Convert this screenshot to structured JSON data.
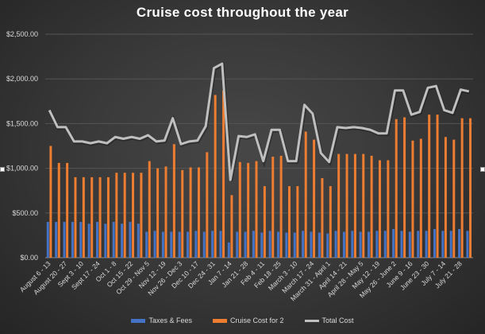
{
  "chart_data": {
    "type": "bar+line",
    "title": "Cruise cost throughout the year",
    "xlabel": "",
    "ylabel": "",
    "ylim": [
      0,
      2500
    ],
    "y_ticks": [
      "$0.00",
      "$500.00",
      "$1,000.00",
      "$1,500.00",
      "$2,000.00",
      "$2,500.00"
    ],
    "y_tick_values": [
      0,
      500,
      1000,
      1500,
      2000,
      2500
    ],
    "grid": true,
    "legend_position": "bottom",
    "weeks_count": 52,
    "tick_labels_every": 2,
    "tick_labels": [
      "August 6 - 13",
      "August 20 - 27",
      "Sept 3 - 10",
      "Sept 17 - 24",
      "Oct 1 - 8",
      "Oct 15 - 22",
      "Oct 29 - Nov 5",
      "Nov 12 - 19",
      "Nov 26 - Dec 3",
      "Dec 10 - 17",
      "Dec 24 - 31",
      "Jan 7 - 14",
      "Jan 21 - 28",
      "Feb 4 - 11",
      "Feb 18 - 25",
      "March 3 - 10",
      "March 17 - 24",
      "March 31 - April 1",
      "April 14 - 21",
      "April 28 - May 5",
      "May 12 - 19",
      "May 26 - June 2",
      "June 9 - 16",
      "June 23 - 30",
      "July 7 - 14",
      "July 21 - 28"
    ],
    "series": [
      {
        "name": "Taxes & Fees",
        "type": "bar",
        "color": "#4472c4",
        "values": [
          400,
          400,
          400,
          400,
          400,
          380,
          400,
          380,
          400,
          380,
          400,
          380,
          290,
          300,
          290,
          290,
          290,
          290,
          300,
          290,
          300,
          300,
          170,
          290,
          290,
          300,
          280,
          300,
          290,
          280,
          280,
          300,
          290,
          280,
          270,
          300,
          290,
          300,
          290,
          290,
          300,
          300,
          320,
          300,
          290,
          300,
          300,
          320,
          300,
          300,
          320,
          300
        ]
      },
      {
        "name": "Cruise Cost for 2",
        "type": "bar",
        "color": "#ed7d31",
        "values": [
          1250,
          1060,
          1060,
          900,
          900,
          900,
          900,
          900,
          950,
          950,
          950,
          950,
          1080,
          1000,
          1020,
          1270,
          980,
          1010,
          1010,
          1180,
          1820,
          1870,
          700,
          1070,
          1060,
          1080,
          800,
          1130,
          1140,
          800,
          800,
          1410,
          1320,
          890,
          800,
          1160,
          1160,
          1160,
          1160,
          1140,
          1090,
          1090,
          1550,
          1570,
          1310,
          1330,
          1600,
          1600,
          1350,
          1320,
          1560,
          1560
        ]
      },
      {
        "name": "Total Cost",
        "type": "line",
        "color": "#bfbfbf",
        "values": [
          1650,
          1460,
          1460,
          1300,
          1300,
          1280,
          1300,
          1280,
          1350,
          1330,
          1350,
          1330,
          1370,
          1300,
          1310,
          1560,
          1270,
          1300,
          1310,
          1470,
          2120,
          2170,
          870,
          1360,
          1350,
          1380,
          1080,
          1430,
          1430,
          1080,
          1080,
          1710,
          1610,
          1170,
          1070,
          1460,
          1450,
          1460,
          1450,
          1430,
          1390,
          1390,
          1870,
          1870,
          1600,
          1630,
          1900,
          1920,
          1650,
          1620,
          1880,
          1860
        ]
      }
    ]
  }
}
